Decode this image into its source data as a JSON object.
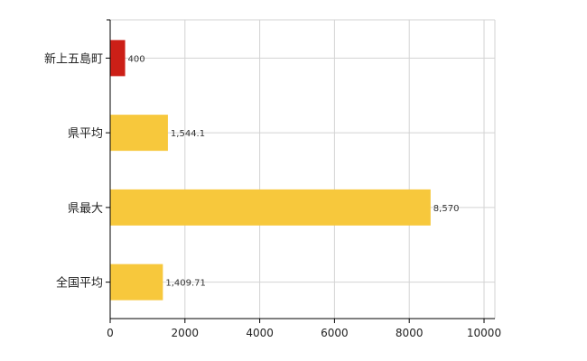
{
  "chart_data": {
    "type": "bar",
    "orientation": "horizontal",
    "categories": [
      "新上五島町",
      "県平均",
      "県最大",
      "全国平均"
    ],
    "values": [
      400,
      1544.1,
      8570,
      1409.71
    ],
    "value_labels": [
      "400",
      "1,544.1",
      "8,570",
      "1,409.71"
    ],
    "xlim": [
      0,
      10000
    ],
    "xticks": [
      0,
      2000,
      4000,
      6000,
      8000,
      10000
    ],
    "xtick_labels": [
      "0",
      "2000",
      "4000",
      "6000",
      "8000",
      "10000"
    ],
    "grid": true,
    "legend": "none",
    "colors": {
      "highlight": "#cc1f17",
      "default": "#f7c83c",
      "grid": "#d3d3d3",
      "axis": "#000000"
    },
    "highlight_index": 0
  }
}
